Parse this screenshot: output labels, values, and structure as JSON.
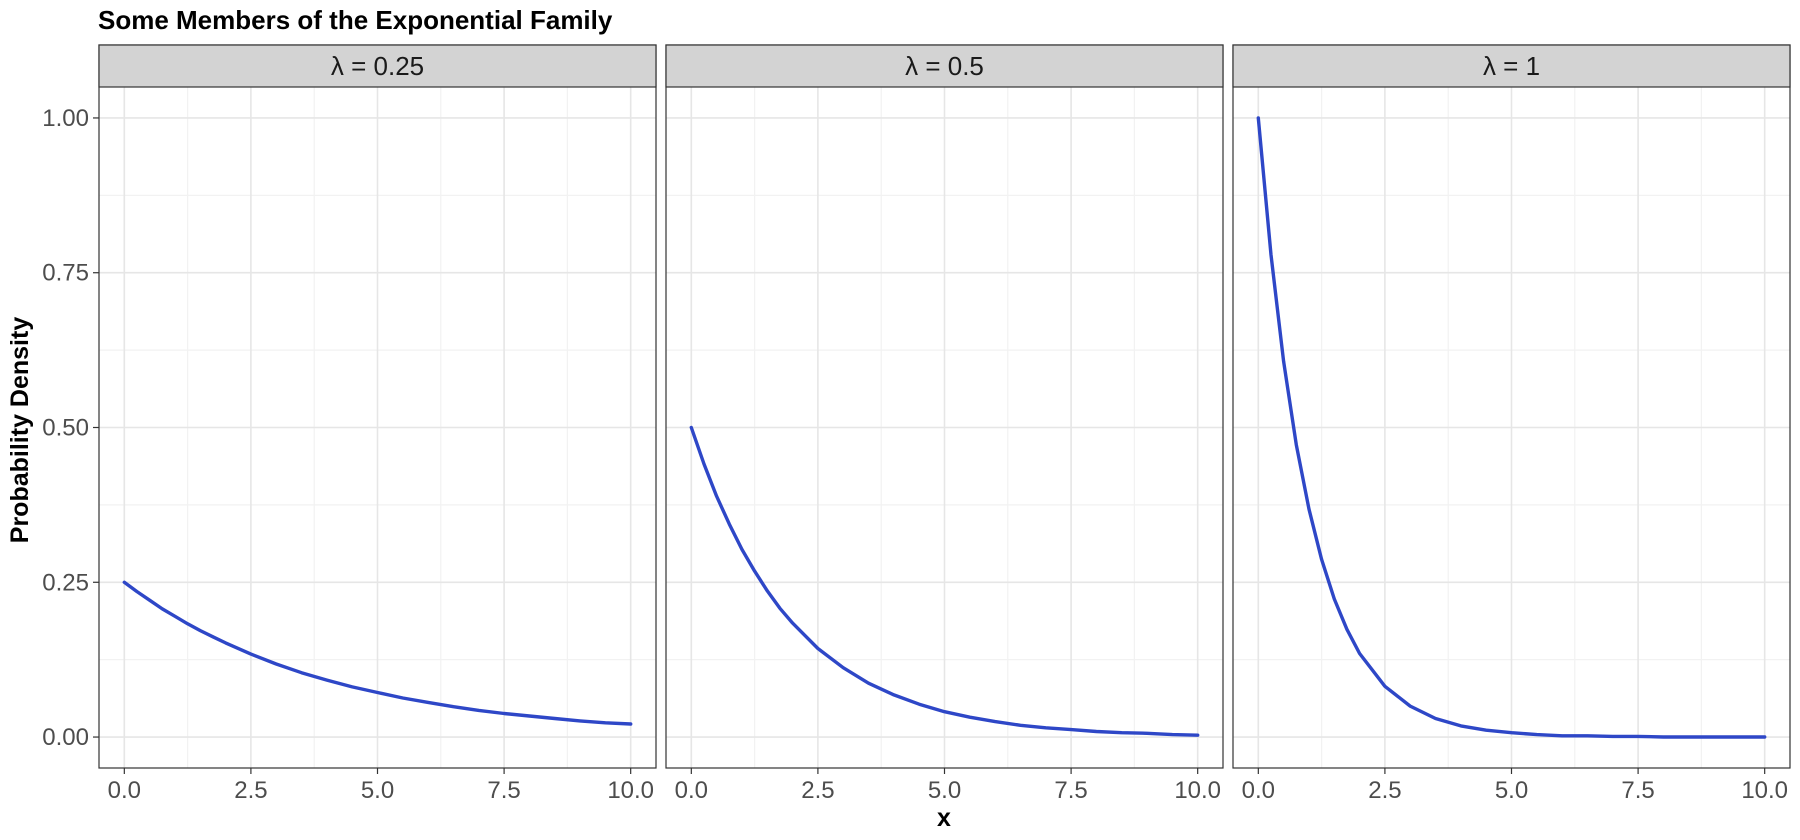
{
  "chart_data": {
    "type": "line",
    "title": "Some Members of the Exponential Family",
    "xlabel": "x",
    "ylabel": "Probability Density",
    "xlim": [
      0,
      10
    ],
    "ylim": [
      0,
      1
    ],
    "x_ticks": [
      "0.0",
      "2.5",
      "5.0",
      "7.5",
      "10.0"
    ],
    "y_ticks": [
      "0.00",
      "0.25",
      "0.50",
      "0.75",
      "1.00"
    ],
    "grid": true,
    "line_color": "#2E47C7",
    "strip_color": "#D3D3D3",
    "x": [
      0,
      0.25,
      0.5,
      0.75,
      1,
      1.25,
      1.5,
      1.75,
      2,
      2.5,
      3,
      3.5,
      4,
      4.5,
      5,
      5.5,
      6,
      6.5,
      7,
      7.5,
      8,
      8.5,
      9,
      9.5,
      10
    ],
    "panels": [
      {
        "label": "λ = 0.25",
        "rate": 0.25,
        "values": [
          0.25,
          0.235,
          0.221,
          0.207,
          0.195,
          0.183,
          0.172,
          0.162,
          0.152,
          0.134,
          0.118,
          0.104,
          0.092,
          0.081,
          0.072,
          0.063,
          0.056,
          0.049,
          0.043,
          0.038,
          0.034,
          0.03,
          0.026,
          0.023,
          0.021
        ]
      },
      {
        "label": "λ = 0.5",
        "rate": 0.5,
        "values": [
          0.5,
          0.441,
          0.389,
          0.344,
          0.303,
          0.268,
          0.236,
          0.208,
          0.184,
          0.143,
          0.112,
          0.087,
          0.068,
          0.053,
          0.041,
          0.032,
          0.025,
          0.019,
          0.015,
          0.012,
          0.009,
          0.007,
          0.006,
          0.004,
          0.003
        ]
      },
      {
        "label": "λ = 1",
        "rate": 1,
        "values": [
          1.0,
          0.779,
          0.607,
          0.472,
          0.368,
          0.287,
          0.223,
          0.174,
          0.135,
          0.082,
          0.05,
          0.03,
          0.018,
          0.011,
          0.007,
          0.004,
          0.002,
          0.002,
          0.001,
          0.001,
          0.0,
          0.0,
          0.0,
          0.0,
          0.0
        ]
      }
    ]
  }
}
